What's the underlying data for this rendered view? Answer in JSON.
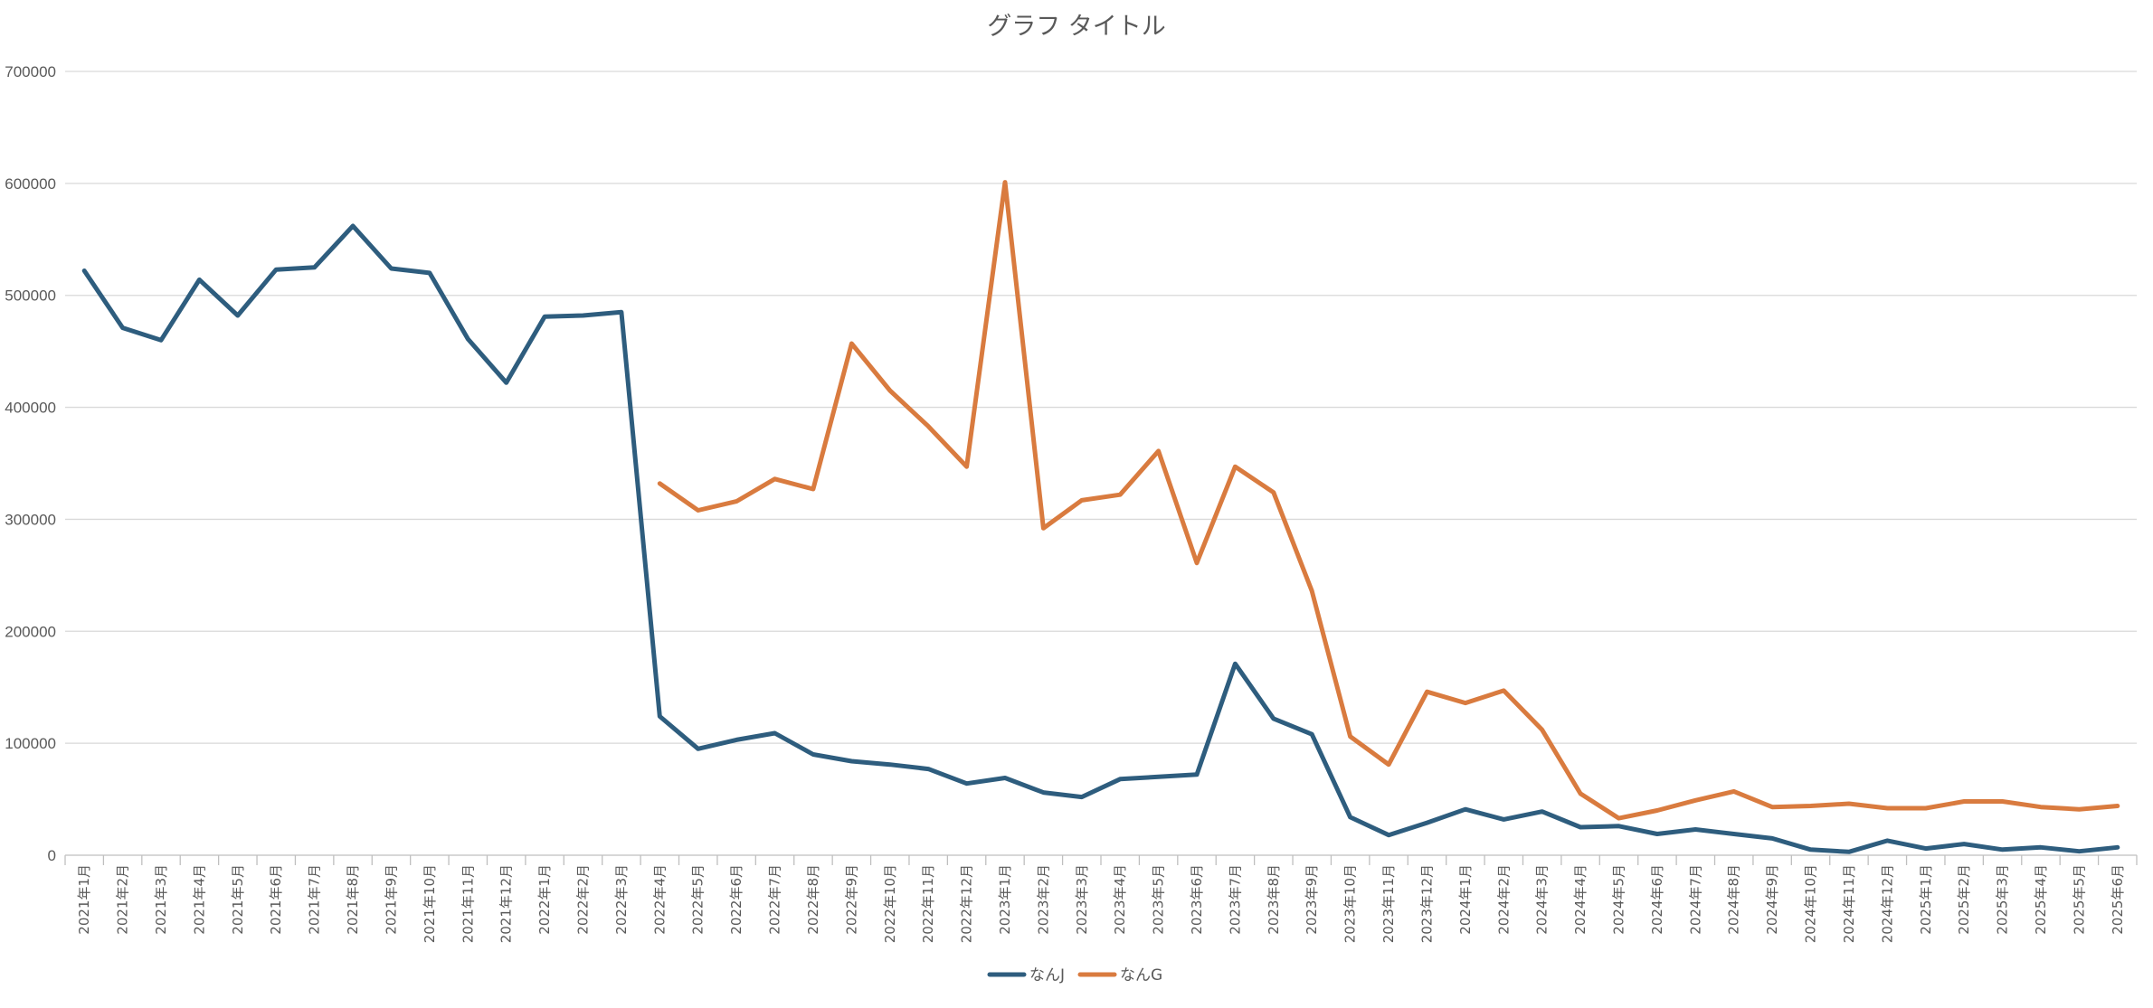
{
  "chart_data": {
    "type": "line",
    "title": "グラフ タイトル",
    "ylim": [
      0,
      700000
    ],
    "yticks": [
      0,
      100000,
      200000,
      300000,
      400000,
      500000,
      600000,
      700000
    ],
    "grid": true,
    "legend_position": "bottom",
    "categories": [
      "2021年1月",
      "2021年2月",
      "2021年3月",
      "2021年4月",
      "2021年5月",
      "2021年6月",
      "2021年7月",
      "2021年8月",
      "2021年9月",
      "2021年10月",
      "2021年11月",
      "2021年12月",
      "2022年1月",
      "2022年2月",
      "2022年3月",
      "2022年4月",
      "2022年5月",
      "2022年6月",
      "2022年7月",
      "2022年8月",
      "2022年9月",
      "2022年10月",
      "2022年11月",
      "2022年12月",
      "2023年1月",
      "2023年2月",
      "2023年3月",
      "2023年4月",
      "2023年5月",
      "2023年6月",
      "2023年7月",
      "2023年8月",
      "2023年9月",
      "2023年10月",
      "2023年11月",
      "2023年12月",
      "2024年1月",
      "2024年2月",
      "2024年3月",
      "2024年4月",
      "2024年5月",
      "2024年6月",
      "2024年7月",
      "2024年8月",
      "2024年9月",
      "2024年10月",
      "2024年11月",
      "2024年12月",
      "2025年1月",
      "2025年2月",
      "2025年3月",
      "2025年4月",
      "2025年5月",
      "2025年6月"
    ],
    "series": [
      {
        "name": "なんJ",
        "color": "#2e5d7e",
        "values": [
          522000,
          471000,
          460000,
          514000,
          482000,
          523000,
          525000,
          562000,
          524000,
          520000,
          461000,
          422000,
          481000,
          482000,
          485000,
          124000,
          95000,
          103000,
          109000,
          90000,
          84000,
          81000,
          77000,
          64000,
          69000,
          56000,
          52000,
          68000,
          70000,
          72000,
          171000,
          122000,
          108000,
          34000,
          18000,
          29000,
          41000,
          32000,
          39000,
          25000,
          26000,
          19000,
          23000,
          19000,
          15000,
          5000,
          3000,
          13000,
          6000,
          10000,
          5000,
          7000,
          3500,
          7000
        ]
      },
      {
        "name": "なんG",
        "color": "#d97b3f",
        "values": [
          null,
          null,
          null,
          null,
          null,
          null,
          null,
          null,
          null,
          null,
          null,
          null,
          null,
          null,
          null,
          332000,
          308000,
          316000,
          336000,
          327000,
          457000,
          415000,
          383000,
          347000,
          601000,
          292000,
          317000,
          322000,
          361000,
          261000,
          347000,
          324000,
          236000,
          106000,
          81000,
          146000,
          136000,
          147000,
          112000,
          55000,
          33000,
          40000,
          49000,
          57000,
          43000,
          44000,
          46000,
          42000,
          42000,
          48000,
          48000,
          43000,
          41000,
          44000
        ]
      }
    ]
  }
}
